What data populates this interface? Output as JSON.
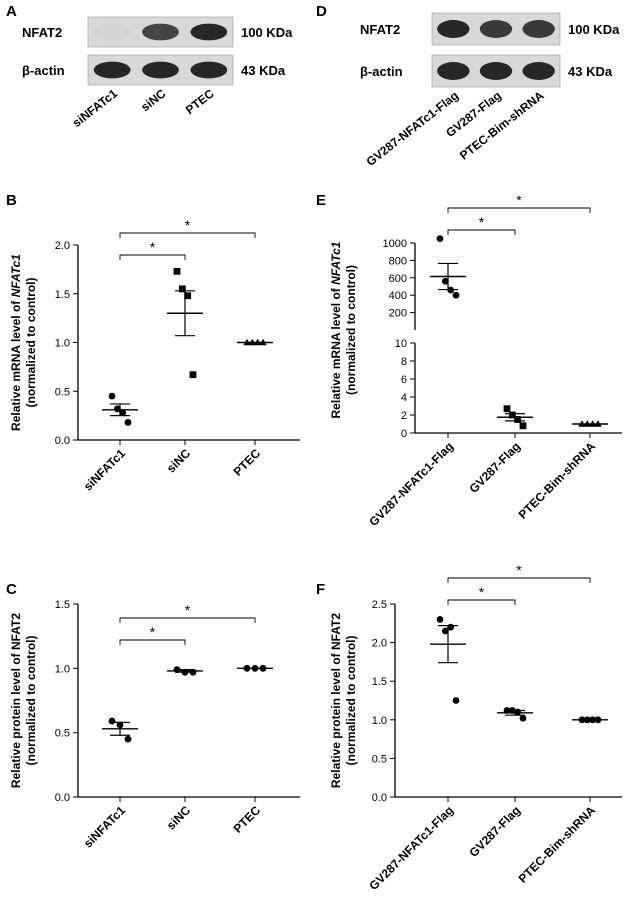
{
  "panels": {
    "A": "A",
    "B": "B",
    "C": "C",
    "D": "D",
    "E": "E",
    "F": "F"
  },
  "blots": {
    "A": {
      "rows": [
        {
          "protein": "NFAT2",
          "size": "100 KDa",
          "intensity": [
            0.05,
            0.8,
            0.95
          ]
        },
        {
          "protein": "β-actin",
          "size": "43 KDa",
          "intensity": [
            0.95,
            0.95,
            0.95
          ]
        }
      ],
      "lanes": [
        "siNFATc1",
        "siNC",
        "PTEC"
      ]
    },
    "D": {
      "rows": [
        {
          "protein": "NFAT2",
          "size": "100 KDa",
          "intensity": [
            0.95,
            0.85,
            0.85
          ]
        },
        {
          "protein": "β-actin",
          "size": "43 KDa",
          "intensity": [
            0.95,
            0.95,
            0.95
          ]
        }
      ],
      "lanes": [
        "GV287-NFATc1-Flag",
        "GV287-Flag",
        "PTEC-Bim-shRNA"
      ]
    }
  },
  "chart_data": [
    {
      "panel": "B",
      "type": "scatter",
      "ylabel_line1": "Relative mRNA level of ",
      "ylabel_italic": "NFATc1",
      "ylabel_line2": "(normalized to control)",
      "categories": [
        "siNFATc1",
        "siNC",
        "PTEC"
      ],
      "ylim": [
        0,
        2.0
      ],
      "yticks": [
        "0.0",
        "0.5",
        "1.0",
        "1.5",
        "2.0"
      ],
      "ytick_values": [
        0,
        0.5,
        1.0,
        1.5,
        2.0
      ],
      "marker": "circle|square|triangle",
      "points": [
        [
          0.45,
          0.32,
          0.28,
          0.18
        ],
        [
          1.73,
          1.55,
          1.48,
          0.67
        ],
        [
          1.0,
          1.0,
          1.0,
          1.0
        ]
      ],
      "means": [
        0.31,
        1.3,
        1.0
      ],
      "sem": [
        0.06,
        0.23,
        0
      ],
      "significance": [
        {
          "from": 0,
          "to": 1,
          "label": "*"
        },
        {
          "from": 0,
          "to": 2,
          "label": "*"
        }
      ]
    },
    {
      "panel": "C",
      "type": "scatter",
      "ylabel": "Relative protein level of NFAT2",
      "ylabel_line2": "(normalized to control)",
      "categories": [
        "siNFATc1",
        "siNC",
        "PTEC"
      ],
      "ylim": [
        0,
        1.5
      ],
      "yticks": [
        "0.0",
        "0.5",
        "1.0",
        "1.5"
      ],
      "ytick_values": [
        0,
        0.5,
        1.0,
        1.5
      ],
      "points": [
        [
          0.59,
          0.56,
          0.45
        ],
        [
          0.99,
          0.97,
          0.97
        ],
        [
          1.0,
          1.0,
          1.0
        ]
      ],
      "means": [
        0.53,
        0.98,
        1.0
      ],
      "sem": [
        0.05,
        0.01,
        0
      ],
      "significance": [
        {
          "from": 0,
          "to": 1,
          "label": "*"
        },
        {
          "from": 0,
          "to": 2,
          "label": "*"
        }
      ]
    },
    {
      "panel": "E",
      "type": "scatter",
      "ylabel_line1": "Relative mRNA level of ",
      "ylabel_italic": "NFATc1",
      "ylabel_line2": "(normalized to control)",
      "categories": [
        "GV287-NFATc1-Flag",
        "GV287-Flag",
        "PTEC-Bim-shRNA"
      ],
      "upper_ylim": [
        0,
        1000
      ],
      "upper_yticks": [
        "1000",
        "800",
        "600",
        "400",
        "200"
      ],
      "upper_tick_values": [
        1000,
        800,
        600,
        400,
        200
      ],
      "lower_ylim": [
        0,
        10
      ],
      "lower_yticks": [
        "10",
        "8",
        "6",
        "4",
        "2",
        "0"
      ],
      "lower_tick_values": [
        10,
        8,
        6,
        4,
        2,
        0
      ],
      "points": [
        [
          1050,
          560,
          460,
          400
        ],
        [
          2.7,
          2.0,
          1.5,
          0.8
        ],
        [
          1.0,
          1.0,
          1.0,
          1.0
        ]
      ],
      "means": [
        615,
        1.75,
        1.0
      ],
      "sem": [
        150,
        0.4,
        0
      ],
      "significance": [
        {
          "from": 0,
          "to": 1,
          "label": "*"
        },
        {
          "from": 0,
          "to": 2,
          "label": "*"
        }
      ]
    },
    {
      "panel": "F",
      "type": "scatter",
      "ylabel": "Relative protein level of NFAT2",
      "ylabel_line2": "(normalized to control)",
      "categories": [
        "GV287-NFATc1-Flag",
        "GV287-Flag",
        "PTEC-Bim-shRNA"
      ],
      "ylim": [
        0,
        2.5
      ],
      "yticks": [
        "0.0",
        "0.5",
        "1.0",
        "1.5",
        "2.0",
        "2.5"
      ],
      "ytick_values": [
        0,
        0.5,
        1.0,
        1.5,
        2.0,
        2.5
      ],
      "points": [
        [
          2.3,
          2.15,
          2.2,
          1.25
        ],
        [
          1.12,
          1.12,
          1.1,
          1.02
        ],
        [
          1.0,
          1.0,
          1.0,
          1.0
        ]
      ],
      "means": [
        1.98,
        1.09,
        1.0
      ],
      "sem": [
        0.24,
        0.03,
        0
      ],
      "significance": [
        {
          "from": 0,
          "to": 1,
          "label": "*"
        },
        {
          "from": 0,
          "to": 2,
          "label": "*"
        }
      ]
    }
  ]
}
